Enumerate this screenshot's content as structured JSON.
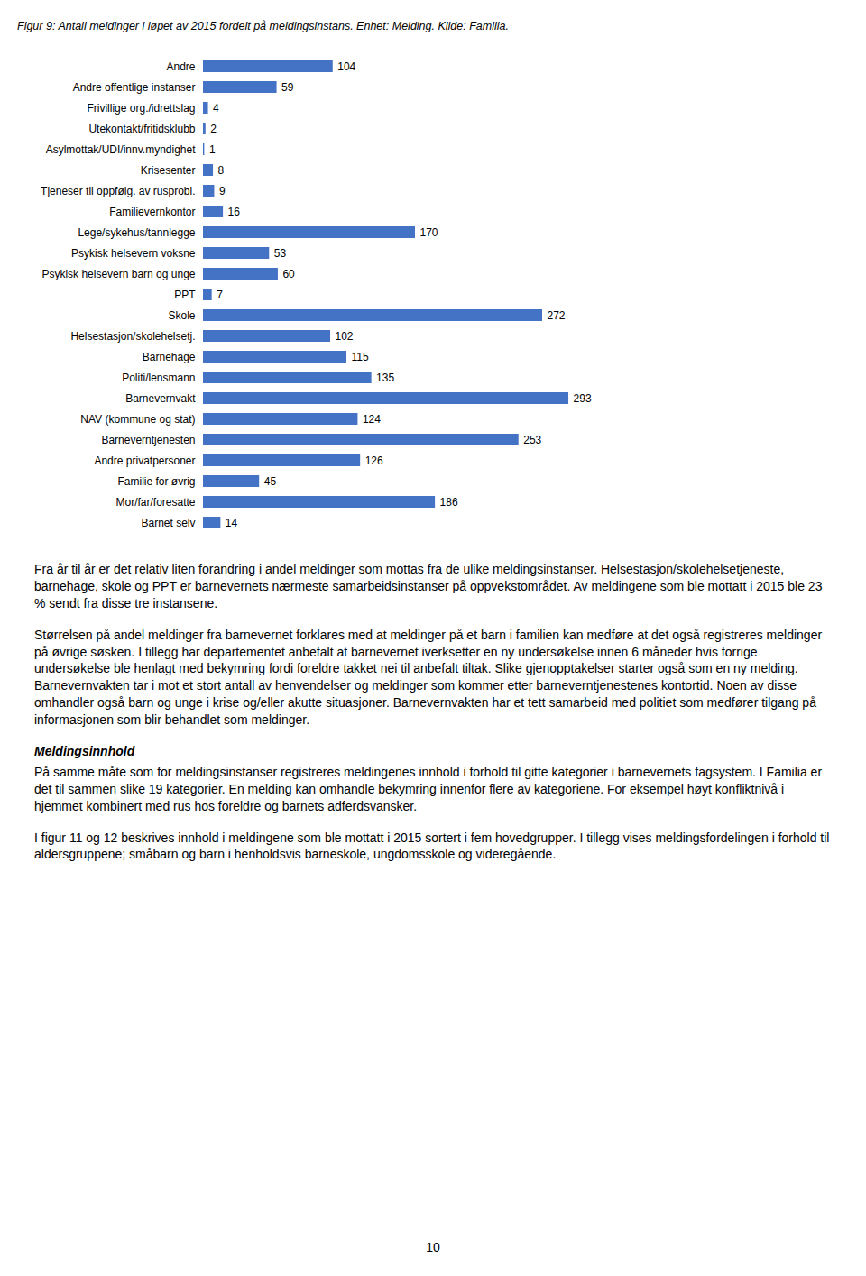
{
  "chart_data": {
    "type": "bar",
    "orientation": "horizontal",
    "title": "Figur 9: Antall meldinger i løpet av 2015 fordelt på meldingsinstans. Enhet: Melding. Kilde: Familia.",
    "categories": [
      "Andre",
      "Andre offentlige instanser",
      "Frivillige org./idrettslag",
      "Utekontakt/fritidsklubb",
      "Asylmottak/UDI/innv.myndighet",
      "Krisesenter",
      "Tjeneser til oppfølg. av rusprobl.",
      "Familievernkontor",
      "Lege/sykehus/tannlegge",
      "Psykisk helsevern voksne",
      "Psykisk helsevern barn og unge",
      "PPT",
      "Skole",
      "Helsestasjon/skolehelsetj.",
      "Barnehage",
      "Politi/lensmann",
      "Barnevernvakt",
      "NAV (kommune og stat)",
      "Barneverntjenesten",
      "Andre privatpersoner",
      "Familie for øvrig",
      "Mor/far/foresatte",
      "Barnet selv"
    ],
    "values": [
      104,
      59,
      4,
      2,
      1,
      8,
      9,
      16,
      170,
      53,
      60,
      7,
      272,
      102,
      115,
      135,
      293,
      124,
      253,
      126,
      45,
      186,
      14
    ],
    "color": "#4472C4",
    "xlim": [
      0,
      340
    ],
    "data_labels": true,
    "tick_labels": "y",
    "grid": false,
    "annotations": [
      "Fra år til år er det relativ liten forandring i andel meldinger som mottas fra de ulike meldingsinstanser. Helsestasjon/skolehelsetjeneste, barnehage, skole og PPT er barnevernets nærmeste samarbeidsinstanser på oppvekstområdet. Av meldingene som ble mottatt i 2015 ble 23 % sendt fra disse tre instansene.",
      "Størrelsen på andel meldinger fra barnevernet forklares med at meldinger på et barn i familien kan medføre at det også registreres meldinger på øvrige søsken. I tillegg har departementet anbefalt at barnevernet iverksetter en ny undersøkelse innen 6 måneder hvis forrige undersøkelse ble henlagt med bekymring fordi foreldre takket nei til anbefalt tiltak. Slike gjenopptakelser starter også som en ny melding. Barnevernvakten tar i mot et stort antall av henvendelser og meldinger som kommer etter barneverntjenestenes kontortid. Noen av disse omhandler også barn og unge i krise og/eller akutte situasjoner. Barnevernvakten har et tett samarbeid med politiet som medfører tilgang på informasjonen som blir behandlet som meldinger.",
      "Meldingsinnhold",
      "På samme måte som for meldingsinstanser registreres meldingenes innhold i forhold til gitte kategorier i barnevernets fagsystem. I Familia er det til sammen slike 19 kategorier. En melding kan omhandle bekymring innenfor flere av kategoriene. For eksempel høyt konfliktnivå i hjemmet kombinert med rus hos foreldre og barnets adferdsvansker.",
      "I figur 11 og 12 beskrives innhold i meldingene som ble mottatt i 2015 sortert i fem hovedgrupper. I tillegg vises meldingsfordelingen i forhold til aldersgruppene; småbarn og barn i henholdsvis barneskole, ungdomsskole og videregående.",
      "10"
    ]
  }
}
